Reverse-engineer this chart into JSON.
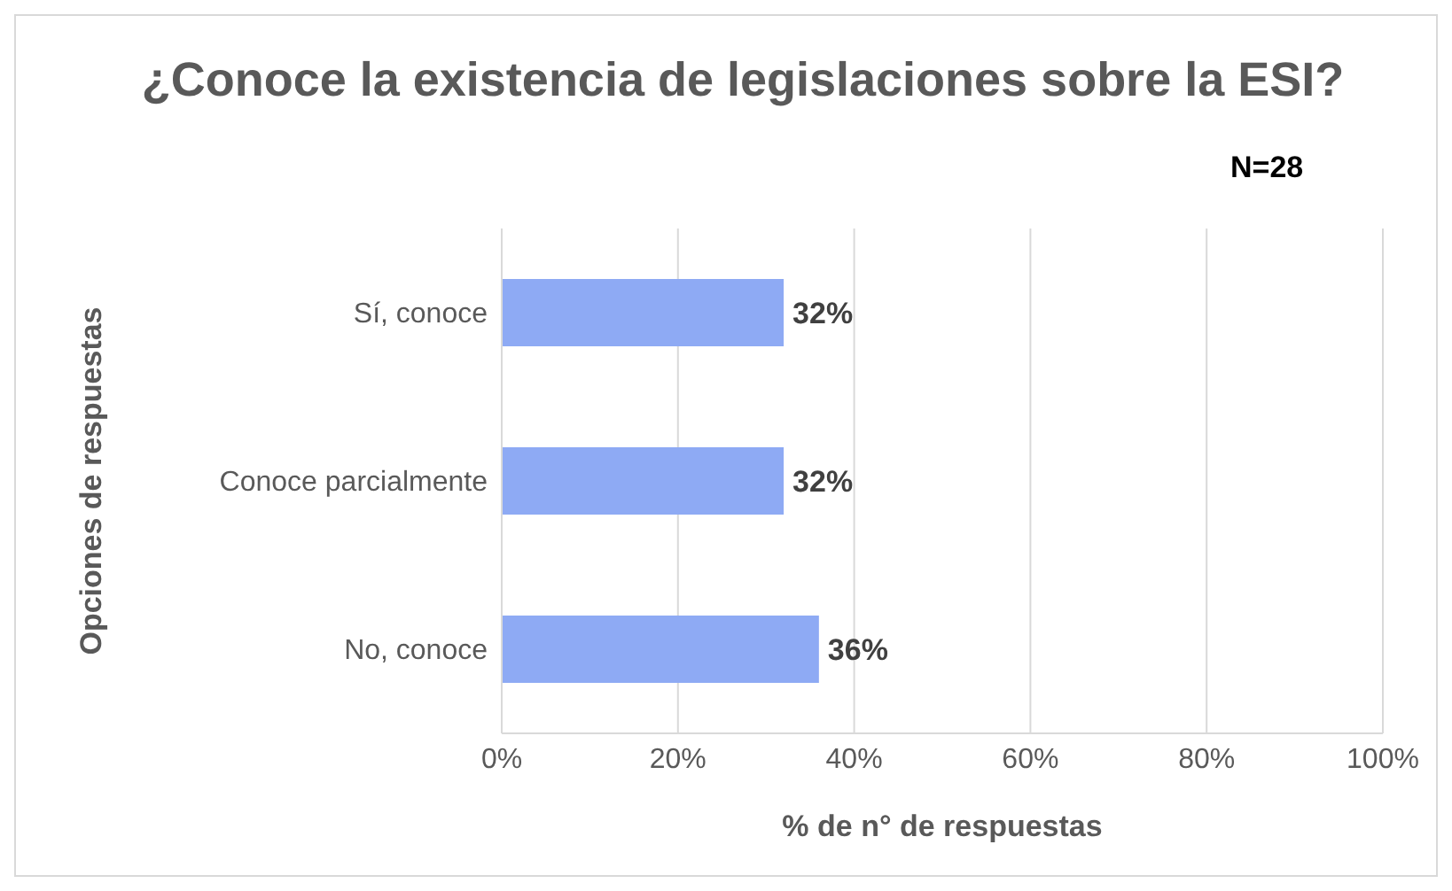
{
  "chart_data": {
    "type": "bar",
    "orientation": "horizontal",
    "title": "¿Conoce la existencia de legislaciones sobre la ESI?",
    "annotations": [
      "N=28"
    ],
    "categories": [
      "Sí, conoce",
      "Conoce parcialmente",
      "No, conoce"
    ],
    "values": [
      32,
      32,
      36
    ],
    "value_labels": [
      "32%",
      "32%",
      "36%"
    ],
    "color": "#8eaaf4",
    "xlim": [
      0,
      100
    ],
    "xticks": [
      {
        "value": 0,
        "label": "0%"
      },
      {
        "value": 20,
        "label": "20%"
      },
      {
        "value": 40,
        "label": "40%"
      },
      {
        "value": 60,
        "label": "60%"
      },
      {
        "value": 80,
        "label": "80%"
      },
      {
        "value": 100,
        "label": "100%"
      }
    ],
    "xlabel": "% de n° de respuestas",
    "ylabel": "Opciones de respuestas",
    "grid": "x",
    "legend": false
  }
}
